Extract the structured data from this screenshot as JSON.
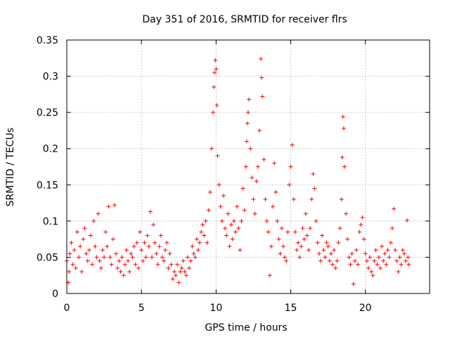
{
  "chart_data": {
    "type": "scatter",
    "title": "Day 351 of 2016, SRMTID for receiver flrs",
    "xlabel": "GPS time / hours",
    "ylabel": "SRMTID / TECUs",
    "xlim": [
      0,
      24.3
    ],
    "ylim": [
      0,
      0.35
    ],
    "x_ticks": [
      0,
      5,
      10,
      15,
      20
    ],
    "x_tick_labels": [
      "0",
      "5",
      "10",
      "15",
      "20"
    ],
    "y_ticks": [
      0,
      0.05,
      0.1,
      0.15,
      0.2,
      0.25,
      0.3,
      0.35
    ],
    "y_tick_labels": [
      "0",
      "0.05",
      "0.1",
      "0.15",
      "0.2",
      "0.25",
      "0.3",
      "0.35"
    ],
    "grid": true,
    "marker": "+",
    "series": [
      {
        "name": "SRMTID",
        "color": "#ff0000",
        "points": [
          [
            0.0,
            0.045
          ],
          [
            0.1,
            0.015
          ],
          [
            0.15,
            0.03
          ],
          [
            0.2,
            0.055
          ],
          [
            0.3,
            0.07
          ],
          [
            0.4,
            0.04
          ],
          [
            0.5,
            0.06
          ],
          [
            0.6,
            0.035
          ],
          [
            0.7,
            0.085
          ],
          [
            0.8,
            0.05
          ],
          [
            0.9,
            0.065
          ],
          [
            1.0,
            0.03
          ],
          [
            1.1,
            0.075
          ],
          [
            1.2,
            0.09
          ],
          [
            1.3,
            0.055
          ],
          [
            1.4,
            0.045
          ],
          [
            1.5,
            0.06
          ],
          [
            1.6,
            0.08
          ],
          [
            1.7,
            0.04
          ],
          [
            1.8,
            0.1
          ],
          [
            1.9,
            0.065
          ],
          [
            2.0,
            0.05
          ],
          [
            2.1,
            0.11
          ],
          [
            2.2,
            0.045
          ],
          [
            2.3,
            0.035
          ],
          [
            2.4,
            0.06
          ],
          [
            2.5,
            0.05
          ],
          [
            2.6,
            0.085
          ],
          [
            2.7,
            0.065
          ],
          [
            2.8,
            0.12
          ],
          [
            2.9,
            0.05
          ],
          [
            3.0,
            0.04
          ],
          [
            3.1,
            0.075
          ],
          [
            3.2,
            0.122
          ],
          [
            3.3,
            0.055
          ],
          [
            3.4,
            0.035
          ],
          [
            3.5,
            0.045
          ],
          [
            3.6,
            0.03
          ],
          [
            3.7,
            0.05
          ],
          [
            3.8,
            0.025
          ],
          [
            3.9,
            0.04
          ],
          [
            4.0,
            0.06
          ],
          [
            4.1,
            0.045
          ],
          [
            4.2,
            0.03
          ],
          [
            4.3,
            0.055
          ],
          [
            4.4,
            0.05
          ],
          [
            4.5,
            0.065
          ],
          [
            4.6,
            0.04
          ],
          [
            4.7,
            0.07
          ],
          [
            4.8,
            0.035
          ],
          [
            4.9,
            0.085
          ],
          [
            5.0,
            0.06
          ],
          [
            5.1,
            0.045
          ],
          [
            5.2,
            0.07
          ],
          [
            5.3,
            0.05
          ],
          [
            5.4,
            0.08
          ],
          [
            5.5,
            0.065
          ],
          [
            5.6,
            0.113
          ],
          [
            5.7,
            0.05
          ],
          [
            5.8,
            0.095
          ],
          [
            5.9,
            0.07
          ],
          [
            6.0,
            0.055
          ],
          [
            6.1,
            0.04
          ],
          [
            6.2,
            0.065
          ],
          [
            6.3,
            0.08
          ],
          [
            6.4,
            0.05
          ],
          [
            6.5,
            0.045
          ],
          [
            6.6,
            0.06
          ],
          [
            6.7,
            0.07
          ],
          [
            6.8,
            0.035
          ],
          [
            6.9,
            0.055
          ],
          [
            7.0,
            0.04
          ],
          [
            7.1,
            0.02
          ],
          [
            7.2,
            0.03
          ],
          [
            7.3,
            0.025
          ],
          [
            7.4,
            0.04
          ],
          [
            7.5,
            0.015
          ],
          [
            7.6,
            0.03
          ],
          [
            7.7,
            0.035
          ],
          [
            7.8,
            0.045
          ],
          [
            7.9,
            0.03
          ],
          [
            8.0,
            0.025
          ],
          [
            8.1,
            0.05
          ],
          [
            8.2,
            0.035
          ],
          [
            8.3,
            0.045
          ],
          [
            8.4,
            0.065
          ],
          [
            8.5,
            0.055
          ],
          [
            8.6,
            0.05
          ],
          [
            8.7,
            0.075
          ],
          [
            8.8,
            0.06
          ],
          [
            8.9,
            0.07
          ],
          [
            9.0,
            0.085
          ],
          [
            9.1,
            0.095
          ],
          [
            9.2,
            0.08
          ],
          [
            9.3,
            0.1
          ],
          [
            9.4,
            0.07
          ],
          [
            9.5,
            0.115
          ],
          [
            9.6,
            0.14
          ],
          [
            9.7,
            0.2
          ],
          [
            9.8,
            0.25
          ],
          [
            9.85,
            0.285
          ],
          [
            9.9,
            0.305
          ],
          [
            9.95,
            0.322
          ],
          [
            10.0,
            0.31
          ],
          [
            10.05,
            0.26
          ],
          [
            10.1,
            0.19
          ],
          [
            10.2,
            0.15
          ],
          [
            10.3,
            0.12
          ],
          [
            10.4,
            0.1
          ],
          [
            10.5,
            0.135
          ],
          [
            10.6,
            0.09
          ],
          [
            10.7,
            0.08
          ],
          [
            10.8,
            0.11
          ],
          [
            10.9,
            0.065
          ],
          [
            11.0,
            0.095
          ],
          [
            11.1,
            0.075
          ],
          [
            11.2,
            0.1
          ],
          [
            11.3,
            0.085
          ],
          [
            11.4,
            0.12
          ],
          [
            11.5,
            0.09
          ],
          [
            11.6,
            0.06
          ],
          [
            11.7,
            0.1
          ],
          [
            11.8,
            0.145
          ],
          [
            11.9,
            0.115
          ],
          [
            12.0,
            0.175
          ],
          [
            12.05,
            0.21
          ],
          [
            12.1,
            0.235
          ],
          [
            12.15,
            0.25
          ],
          [
            12.2,
            0.268
          ],
          [
            12.3,
            0.2
          ],
          [
            12.4,
            0.16
          ],
          [
            12.5,
            0.13
          ],
          [
            12.6,
            0.11
          ],
          [
            12.7,
            0.155
          ],
          [
            12.8,
            0.175
          ],
          [
            12.9,
            0.225
          ],
          [
            13.0,
            0.324
          ],
          [
            13.05,
            0.298
          ],
          [
            13.1,
            0.272
          ],
          [
            13.2,
            0.185
          ],
          [
            13.3,
            0.13
          ],
          [
            13.4,
            0.1
          ],
          [
            13.5,
            0.085
          ],
          [
            13.6,
            0.025
          ],
          [
            13.7,
            0.065
          ],
          [
            13.8,
            0.12
          ],
          [
            13.9,
            0.18
          ],
          [
            14.0,
            0.14
          ],
          [
            14.1,
            0.1
          ],
          [
            14.2,
            0.075
          ],
          [
            14.3,
            0.055
          ],
          [
            14.4,
            0.09
          ],
          [
            14.5,
            0.065
          ],
          [
            14.6,
            0.05
          ],
          [
            14.7,
            0.045
          ],
          [
            14.8,
            0.085
          ],
          [
            14.9,
            0.15
          ],
          [
            15.0,
            0.175
          ],
          [
            15.1,
            0.205
          ],
          [
            15.2,
            0.13
          ],
          [
            15.3,
            0.085
          ],
          [
            15.4,
            0.06
          ],
          [
            15.5,
            0.07
          ],
          [
            15.6,
            0.05
          ],
          [
            15.7,
            0.065
          ],
          [
            15.8,
            0.09
          ],
          [
            15.9,
            0.075
          ],
          [
            16.0,
            0.11
          ],
          [
            16.1,
            0.08
          ],
          [
            16.2,
            0.06
          ],
          [
            16.3,
            0.09
          ],
          [
            16.4,
            0.13
          ],
          [
            16.5,
            0.165
          ],
          [
            16.6,
            0.145
          ],
          [
            16.7,
            0.1
          ],
          [
            16.8,
            0.07
          ],
          [
            16.9,
            0.055
          ],
          [
            17.0,
            0.045
          ],
          [
            17.1,
            0.08
          ],
          [
            17.2,
            0.06
          ],
          [
            17.3,
            0.05
          ],
          [
            17.4,
            0.07
          ],
          [
            17.5,
            0.065
          ],
          [
            17.6,
            0.045
          ],
          [
            17.7,
            0.055
          ],
          [
            17.8,
            0.04
          ],
          [
            17.9,
            0.06
          ],
          [
            18.0,
            0.035
          ],
          [
            18.1,
            0.045
          ],
          [
            18.2,
            0.07
          ],
          [
            18.3,
            0.09
          ],
          [
            18.4,
            0.13
          ],
          [
            18.45,
            0.188
          ],
          [
            18.5,
            0.244
          ],
          [
            18.55,
            0.228
          ],
          [
            18.6,
            0.175
          ],
          [
            18.7,
            0.11
          ],
          [
            18.8,
            0.075
          ],
          [
            18.9,
            0.05
          ],
          [
            19.0,
            0.04
          ],
          [
            19.1,
            0.055
          ],
          [
            19.2,
            0.013
          ],
          [
            19.3,
            0.045
          ],
          [
            19.4,
            0.06
          ],
          [
            19.5,
            0.04
          ],
          [
            19.6,
            0.085
          ],
          [
            19.7,
            0.095
          ],
          [
            19.8,
            0.105
          ],
          [
            19.9,
            0.075
          ],
          [
            20.0,
            0.055
          ],
          [
            20.1,
            0.045
          ],
          [
            20.2,
            0.035
          ],
          [
            20.3,
            0.05
          ],
          [
            20.4,
            0.03
          ],
          [
            20.5,
            0.025
          ],
          [
            20.6,
            0.045
          ],
          [
            20.7,
            0.06
          ],
          [
            20.8,
            0.04
          ],
          [
            20.9,
            0.05
          ],
          [
            21.0,
            0.035
          ],
          [
            21.1,
            0.065
          ],
          [
            21.2,
            0.045
          ],
          [
            21.3,
            0.055
          ],
          [
            21.4,
            0.04
          ],
          [
            21.5,
            0.06
          ],
          [
            21.6,
            0.05
          ],
          [
            21.7,
            0.07
          ],
          [
            21.8,
            0.09
          ],
          [
            21.9,
            0.117
          ],
          [
            22.0,
            0.06
          ],
          [
            22.1,
            0.045
          ],
          [
            22.2,
            0.03
          ],
          [
            22.3,
            0.05
          ],
          [
            22.4,
            0.04
          ],
          [
            22.5,
            0.06
          ],
          [
            22.6,
            0.055
          ],
          [
            22.7,
            0.045
          ],
          [
            22.8,
            0.101
          ],
          [
            22.85,
            0.05
          ],
          [
            22.9,
            0.04
          ]
        ]
      }
    ]
  }
}
